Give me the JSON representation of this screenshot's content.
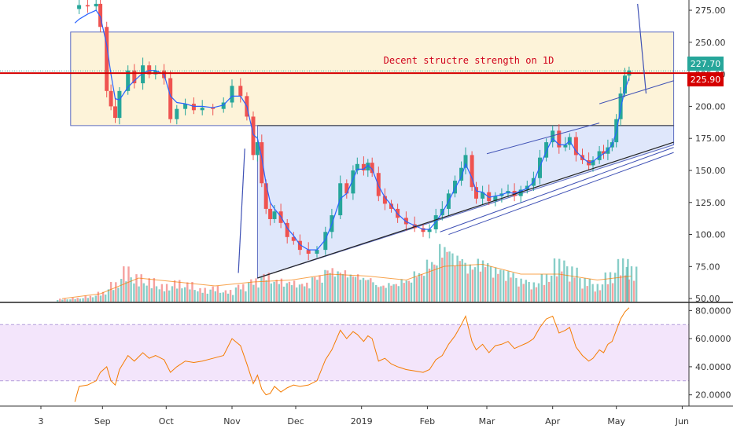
{
  "chart_data": [
    {
      "type": "candlestick",
      "title": "",
      "annotation": "Decent structre strength on 1D",
      "colors": {
        "up": "#26a69a",
        "down": "#ef5350",
        "ma": "#2962ff",
        "hline": "#d50000",
        "zone": "#fdf3d9",
        "triangle": "#dfe7fb"
      },
      "ylim": [
        47,
        283
      ],
      "y_ticks": [
        "275.00",
        "250.00",
        "225.00",
        "200.00",
        "175.00",
        "150.00",
        "125.00",
        "100.00",
        "75.00",
        "50.00"
      ],
      "y_tick_values": [
        275,
        250,
        225,
        200,
        175,
        150,
        125,
        100,
        75,
        50
      ],
      "x_ticks": [
        "3",
        "Sep",
        "Oct",
        "Nov",
        "Dec",
        "2019",
        "Feb",
        "Mar",
        "Apr",
        "May",
        "Jun"
      ],
      "x_tick_days": [
        2,
        31,
        61,
        92,
        122,
        153,
        184,
        212,
        243,
        273,
        304
      ],
      "last_price": "227.70",
      "last_price_value": 227.7,
      "level_price": "225.90",
      "level_value": 225.9,
      "zone": {
        "x_days": [
          16,
          300
        ],
        "y_range": [
          185,
          258
        ]
      },
      "triangle": {
        "apex_day": 104,
        "x_end_day": 300,
        "top": 185,
        "bottom_start": 66,
        "bottom_end": 170
      },
      "wedge_upper": {
        "x_days": [
          212,
          265
        ],
        "y": [
          163,
          187
        ]
      },
      "trend_support": {
        "x_days": [
          104,
          300
        ],
        "y": [
          66,
          172
        ]
      },
      "channel_lower": {
        "x_days": [
          190,
          300
        ],
        "y": [
          102,
          168
        ]
      },
      "channel_upper": {
        "x_days": [
          265,
          300
        ],
        "y": [
          202,
          220
        ]
      },
      "measure_lines": [
        {
          "x_days": [
            98,
            95
          ],
          "y": [
            167,
            70
          ]
        },
        {
          "x_days": [
            287,
            283
          ],
          "y": [
            210,
            280
          ]
        }
      ],
      "price_path": {
        "days": [
          18,
          20,
          24,
          28,
          30,
          33,
          35,
          37,
          39,
          43,
          46,
          50,
          53,
          56,
          60,
          63,
          66,
          70,
          74,
          78,
          83,
          88,
          92,
          96,
          99,
          102,
          104,
          106,
          108,
          110,
          112,
          115,
          118,
          121,
          124,
          128,
          132,
          136,
          139,
          143,
          146,
          149,
          151,
          154,
          156,
          158,
          161,
          164,
          167,
          170,
          174,
          178,
          182,
          185,
          188,
          191,
          194,
          197,
          200,
          202,
          205,
          207,
          210,
          213,
          216,
          219,
          222,
          225,
          228,
          231,
          234,
          237,
          240,
          243,
          246,
          249,
          251,
          254,
          257,
          260,
          262,
          265,
          267,
          269,
          271,
          273,
          275,
          277,
          279
        ],
        "closes": [
          276,
          279,
          278,
          280,
          262,
          212,
          200,
          191,
          212,
          228,
          218,
          232,
          225,
          228,
          222,
          190,
          198,
          202,
          197,
          199,
          198,
          203,
          216,
          208,
          192,
          162,
          172,
          140,
          120,
          112,
          118,
          109,
          98,
          95,
          88,
          85,
          88,
          102,
          115,
          140,
          132,
          150,
          155,
          150,
          156,
          148,
          130,
          124,
          120,
          113,
          108,
          105,
          102,
          104,
          115,
          120,
          132,
          142,
          152,
          162,
          137,
          128,
          133,
          126,
          130,
          132,
          134,
          130,
          135,
          138,
          144,
          160,
          172,
          181,
          168,
          170,
          176,
          162,
          158,
          154,
          158,
          165,
          163,
          168,
          172,
          190,
          210,
          224,
          228
        ],
        "ma": [
          265,
          268,
          272,
          275,
          270,
          248,
          225,
          206,
          205,
          215,
          220,
          226,
          228,
          228,
          225,
          208,
          203,
          202,
          200,
          200,
          199,
          201,
          208,
          208,
          200,
          178,
          175,
          160,
          140,
          125,
          120,
          114,
          105,
          99,
          92,
          88,
          88,
          96,
          108,
          128,
          132,
          143,
          151,
          151,
          154,
          151,
          138,
          129,
          123,
          116,
          110,
          107,
          104,
          104,
          110,
          117,
          126,
          136,
          145,
          155,
          144,
          134,
          133,
          129,
          130,
          131,
          133,
          132,
          134,
          136,
          141,
          153,
          165,
          175,
          170,
          170,
          173,
          165,
          160,
          156,
          157,
          161,
          163,
          166,
          170,
          180,
          198,
          213,
          222
        ]
      },
      "volume": {
        "days": [
          12,
          18,
          24,
          30,
          36,
          42,
          48,
          54,
          60,
          66,
          72,
          78,
          84,
          90,
          96,
          102,
          108,
          114,
          120,
          126,
          132,
          138,
          144,
          150,
          156,
          162,
          168,
          174,
          180,
          186,
          192,
          198,
          204,
          210,
          216,
          222,
          228,
          234,
          240,
          246,
          252,
          258,
          264,
          270,
          276,
          280
        ],
        "values": [
          1.5,
          2,
          3,
          5,
          10,
          18,
          14,
          12,
          9,
          11,
          10,
          7,
          8,
          6,
          9,
          12,
          15,
          12,
          11,
          10,
          14,
          18,
          17,
          15,
          13,
          9,
          10,
          12,
          16,
          22,
          30,
          25,
          20,
          22,
          18,
          16,
          12,
          10,
          14,
          22,
          18,
          12,
          9,
          15,
          22,
          18
        ],
        "max": 36
      },
      "volume_ma": {
        "days": [
          12,
          30,
          48,
          66,
          84,
          102,
          120,
          138,
          156,
          174,
          192,
          210,
          228,
          246,
          264,
          280
        ],
        "values": [
          1.5,
          4,
          12,
          10,
          8,
          10,
          11,
          14,
          13,
          11,
          18,
          19,
          14,
          14,
          11,
          13
        ]
      }
    },
    {
      "type": "line",
      "title": "",
      "ylim": [
        12,
        83
      ],
      "y_ticks": [
        "80.0000",
        "60.0000",
        "40.0000",
        "20.0000"
      ],
      "y_tick_values": [
        80,
        60,
        40,
        20
      ],
      "band": [
        30,
        70
      ],
      "rsi": {
        "days": [
          18,
          20,
          24,
          28,
          30,
          33,
          35,
          37,
          39,
          43,
          46,
          50,
          53,
          56,
          60,
          63,
          66,
          70,
          74,
          78,
          83,
          88,
          92,
          96,
          99,
          102,
          104,
          106,
          108,
          110,
          112,
          115,
          118,
          121,
          124,
          128,
          132,
          136,
          139,
          143,
          146,
          149,
          151,
          154,
          156,
          158,
          161,
          164,
          167,
          170,
          174,
          178,
          182,
          185,
          188,
          191,
          194,
          197,
          200,
          202,
          205,
          207,
          210,
          213,
          216,
          219,
          222,
          225,
          228,
          231,
          234,
          237,
          240,
          243,
          246,
          249,
          251,
          254,
          257,
          260,
          262,
          265,
          267,
          269,
          271,
          273,
          275,
          277,
          279
        ],
        "values": [
          15,
          26,
          27,
          30,
          36,
          40,
          30,
          27,
          38,
          48,
          44,
          50,
          46,
          48,
          45,
          36,
          40,
          44,
          43,
          44,
          46,
          48,
          60,
          55,
          42,
          28,
          34,
          24,
          20,
          21,
          26,
          22,
          25,
          27,
          26,
          27,
          30,
          45,
          52,
          66,
          60,
          65,
          63,
          58,
          62,
          60,
          44,
          46,
          42,
          40,
          38,
          37,
          36,
          38,
          45,
          48,
          56,
          62,
          70,
          76,
          58,
          52,
          56,
          50,
          55,
          56,
          58,
          53,
          55,
          57,
          60,
          68,
          74,
          76,
          64,
          66,
          68,
          54,
          48,
          44,
          46,
          52,
          50,
          56,
          58,
          66,
          74,
          79,
          82
        ]
      }
    }
  ]
}
